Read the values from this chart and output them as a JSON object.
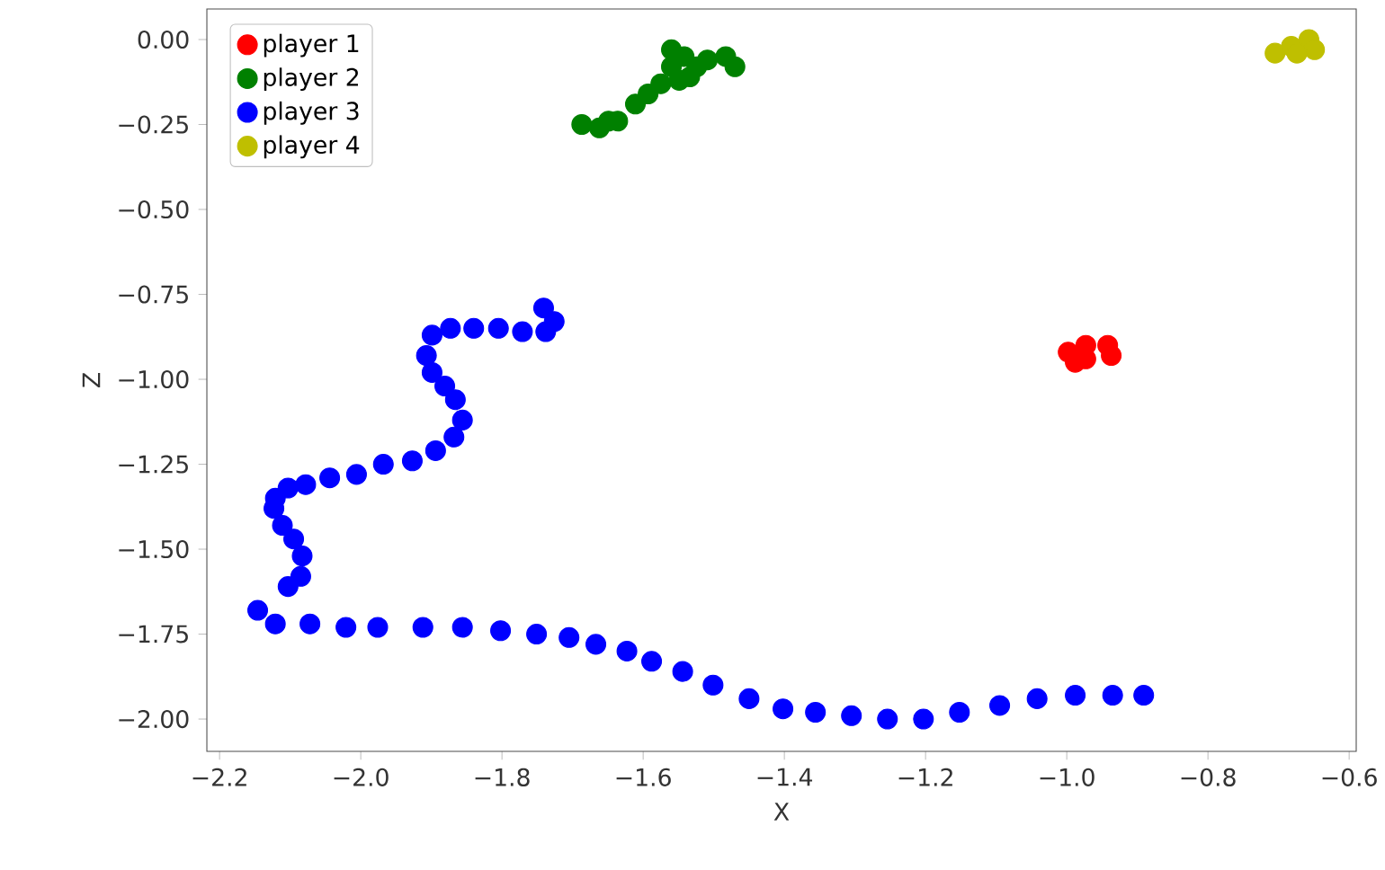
{
  "chart_data": {
    "type": "scatter",
    "xlabel": "X",
    "ylabel": "Z",
    "xlim": [
      -2.218,
      -0.59
    ],
    "ylim": [
      -2.095,
      0.09
    ],
    "xticks": [
      {
        "value": -2.2,
        "label": "−2.2"
      },
      {
        "value": -2.0,
        "label": "−2.0"
      },
      {
        "value": -1.8,
        "label": "−1.8"
      },
      {
        "value": -1.6,
        "label": "−1.6"
      },
      {
        "value": -1.4,
        "label": "−1.4"
      },
      {
        "value": -1.2,
        "label": "−1.2"
      },
      {
        "value": -1.0,
        "label": "−1.0"
      },
      {
        "value": -0.8,
        "label": "−0.8"
      },
      {
        "value": -0.6,
        "label": "−0.6"
      }
    ],
    "yticks": [
      {
        "value": 0,
        "label": "0.00"
      },
      {
        "value": -0.25,
        "label": "−0.25"
      },
      {
        "value": -0.5,
        "label": "−0.50"
      },
      {
        "value": -0.75,
        "label": "−0.75"
      },
      {
        "value": -1.0,
        "label": "−1.00"
      },
      {
        "value": -1.25,
        "label": "−1.25"
      },
      {
        "value": -1.5,
        "label": "−1.50"
      },
      {
        "value": -1.75,
        "label": "−1.75"
      },
      {
        "value": -2.0,
        "label": "−2.00"
      }
    ],
    "grid": false,
    "legend": "top left",
    "marker": "circle",
    "series": [
      {
        "name": "player 1",
        "color": "#ff0000",
        "x": [
          -0.998,
          -0.973,
          -0.942,
          -0.937,
          -0.973,
          -0.988
        ],
        "values": [
          -0.92,
          -0.9,
          -0.9,
          -0.93,
          -0.94,
          -0.95
        ]
      },
      {
        "name": "player 2",
        "color": "#008000",
        "x": [
          -1.687,
          -1.662,
          -1.649,
          -1.636,
          -1.613,
          -1.611,
          -1.593,
          -1.575,
          -1.56,
          -1.56,
          -1.549,
          -1.542,
          -1.534,
          -1.524,
          -1.509,
          -1.483,
          -1.47
        ],
        "values": [
          -0.25,
          -0.26,
          -0.24,
          -0.24,
          null,
          -0.19,
          -0.16,
          -0.13,
          -0.08,
          -0.03,
          -0.12,
          -0.05,
          -0.11,
          -0.08,
          -0.06,
          -0.05,
          -0.08
        ]
      },
      {
        "name": "player 3",
        "color": "#0000ff",
        "x": [
          -1.741,
          -1.726,
          -1.738,
          -1.771,
          -1.805,
          -1.84,
          -1.873,
          -1.899,
          -1.907,
          -1.899,
          -1.881,
          -1.866,
          -1.856,
          -1.868,
          -1.894,
          -1.927,
          -1.968,
          -2.006,
          -2.044,
          -2.078,
          -2.103,
          -2.121,
          -2.123,
          -2.111,
          -2.095,
          -2.083,
          -2.085,
          -2.103,
          -2.136,
          -2.146,
          -2.121,
          -2.072,
          -2.021,
          -1.976,
          -1.912,
          -1.856,
          -1.802,
          -1.751,
          -1.705,
          -1.667,
          -1.623,
          -1.588,
          -1.544,
          -1.501,
          -1.45,
          -1.402,
          -1.356,
          -1.305,
          -1.254,
          -1.203,
          -1.152,
          -1.095,
          -1.042,
          -0.988,
          -0.935,
          -0.891
        ],
        "values": [
          -0.79,
          -0.83,
          -0.86,
          -0.86,
          -0.85,
          -0.85,
          -0.85,
          -0.87,
          -0.93,
          -0.98,
          -1.02,
          -1.06,
          -1.12,
          -1.17,
          -1.21,
          -1.24,
          -1.25,
          -1.28,
          -1.29,
          -1.31,
          -1.32,
          -1.35,
          -1.38,
          -1.43,
          -1.47,
          -1.52,
          -1.58,
          -1.61,
          null,
          -1.68,
          -1.72,
          -1.72,
          -1.73,
          -1.73,
          -1.73,
          -1.73,
          -1.74,
          -1.75,
          -1.76,
          -1.78,
          -1.8,
          -1.83,
          -1.86,
          -1.9,
          -1.94,
          -1.97,
          -1.98,
          -1.99,
          -2.0,
          -2.0,
          -1.98,
          -1.96,
          -1.94,
          -1.93,
          -1.93,
          -1.93
        ]
      },
      {
        "name": "player 4",
        "color": "#bfbf00",
        "x": [
          -0.705,
          -0.682,
          -0.657,
          -0.649,
          -0.674
        ],
        "values": [
          -0.04,
          -0.02,
          0.0,
          -0.03,
          -0.04
        ]
      }
    ]
  }
}
